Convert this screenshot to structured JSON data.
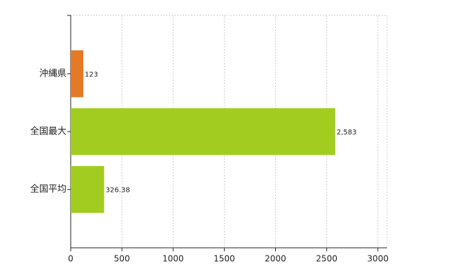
{
  "chart_data": {
    "type": "hbar",
    "categories": [
      "沖縄県",
      "全国最大",
      "全国平均"
    ],
    "values": [
      123,
      2583,
      326.38
    ],
    "value_labels": [
      "123",
      "2,583",
      "326.38"
    ],
    "colors": [
      "#e57a26",
      "#a3cc21",
      "#a3cc21"
    ],
    "xlim": [
      0,
      3090
    ],
    "xticks": [
      0,
      500,
      1000,
      1500,
      2000,
      2500,
      3000
    ],
    "grid": true
  }
}
